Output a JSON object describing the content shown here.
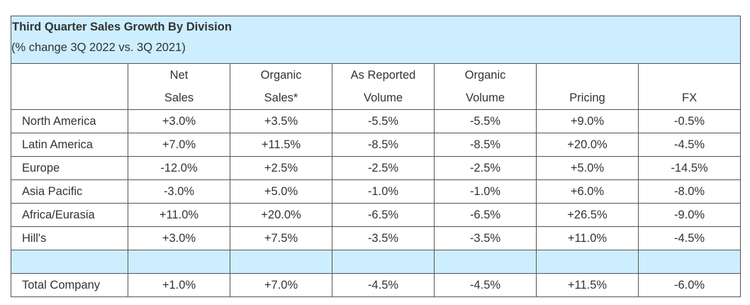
{
  "title": "Third Quarter Sales Growth By Division",
  "subtitle": "(% change 3Q 2022 vs. 3Q 2021)",
  "columns": [
    {
      "line1": "",
      "line2": ""
    },
    {
      "line1": "Net",
      "line2": "Sales"
    },
    {
      "line1": "Organic",
      "line2": "Sales*"
    },
    {
      "line1": "As Reported",
      "line2": "Volume"
    },
    {
      "line1": "Organic",
      "line2": "Volume"
    },
    {
      "line1": "",
      "line2": "Pricing"
    },
    {
      "line1": "",
      "line2": "FX"
    }
  ],
  "rows": [
    {
      "label": "North America",
      "values": [
        "+3.0%",
        "+3.5%",
        "-5.5%",
        "-5.5%",
        "+9.0%",
        "-0.5%"
      ]
    },
    {
      "label": "Latin America",
      "values": [
        "+7.0%",
        "+11.5%",
        "-8.5%",
        "-8.5%",
        "+20.0%",
        "-4.5%"
      ]
    },
    {
      "label": "Europe",
      "values": [
        "-12.0%",
        "+2.5%",
        "-2.5%",
        "-2.5%",
        "+5.0%",
        "-14.5%"
      ]
    },
    {
      "label": "Asia Pacific",
      "values": [
        "-3.0%",
        "+5.0%",
        "-1.0%",
        "-1.0%",
        "+6.0%",
        "-8.0%"
      ]
    },
    {
      "label": "Africa/Eurasia",
      "values": [
        "+11.0%",
        "+20.0%",
        "-6.5%",
        "-6.5%",
        "+26.5%",
        "-9.0%"
      ]
    },
    {
      "label": "Hill's",
      "values": [
        "+3.0%",
        "+7.5%",
        "-3.5%",
        "-3.5%",
        "+11.0%",
        "-4.5%"
      ]
    }
  ],
  "total": {
    "label": "Total Company",
    "values": [
      "+1.0%",
      "+7.0%",
      "-4.5%",
      "-4.5%",
      "+11.5%",
      "-6.0%"
    ]
  },
  "colors": {
    "header_band": "#cceeff",
    "border": "#555555",
    "text": "#333333"
  }
}
